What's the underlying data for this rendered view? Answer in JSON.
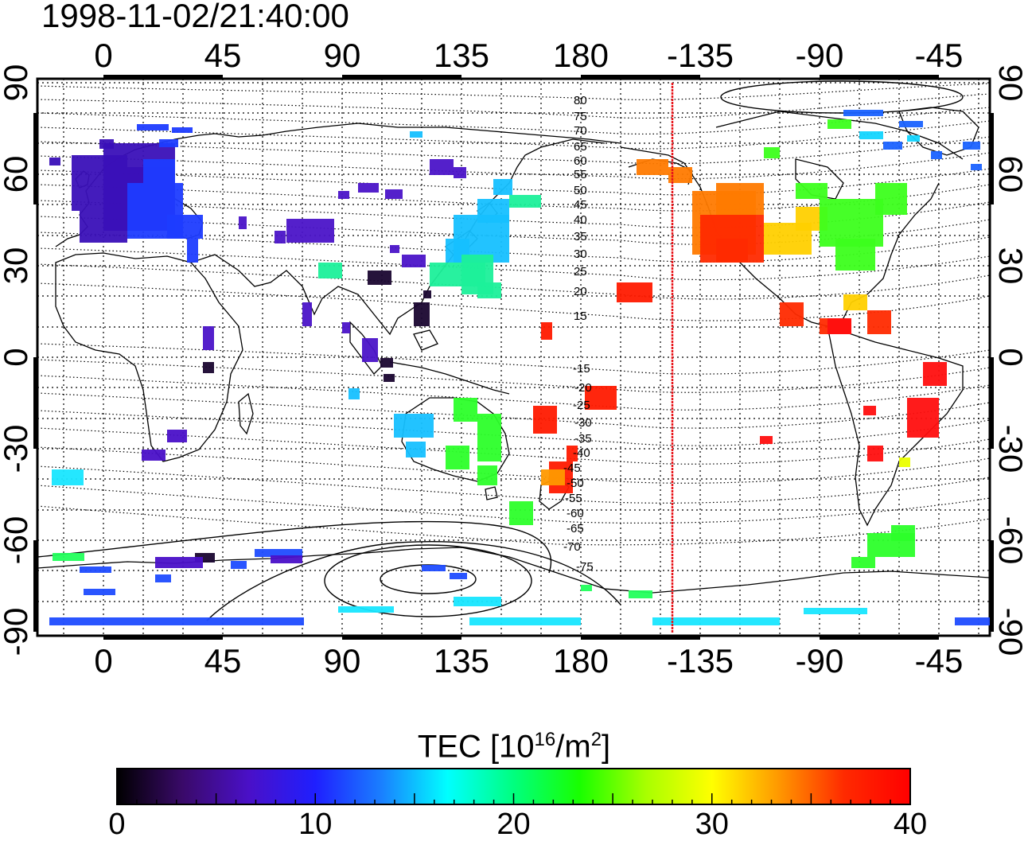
{
  "title": "1998-11-02/21:40:00",
  "map": {
    "lon_ticks": [
      "0",
      "45",
      "90",
      "135",
      "180",
      "-135",
      "-90",
      "-45"
    ],
    "lat_ticks": [
      "90",
      "60",
      "30",
      "0",
      "-30",
      "-60",
      "-90"
    ],
    "contour_labels_north": [
      "80",
      "75",
      "70",
      "65",
      "60",
      "55",
      "50",
      "45",
      "40",
      "35",
      "30",
      "25",
      "20",
      "15"
    ],
    "contour_labels_south": [
      "-15",
      "-20",
      "-25",
      "-30",
      "-35",
      "-40",
      "-45",
      "-50",
      "-55",
      "-60",
      "-65",
      "-70",
      "-75"
    ],
    "terminator_color": "#e8151b"
  },
  "colorbar": {
    "title": "TEC  [10",
    "title_sup1": "16",
    "title_mid": "/m",
    "title_sup2": "2",
    "title_end": "]",
    "min": 0,
    "max": 40,
    "ticks": [
      "0",
      "10",
      "20",
      "30",
      "40"
    ],
    "colors": [
      "#000000",
      "#3a0a6a",
      "#4a10c8",
      "#1f1fff",
      "#1a7fff",
      "#00ffff",
      "#00ff7f",
      "#19ff00",
      "#a8ff00",
      "#ffff00",
      "#ff9900",
      "#ff2a00",
      "#ff0000"
    ]
  }
}
